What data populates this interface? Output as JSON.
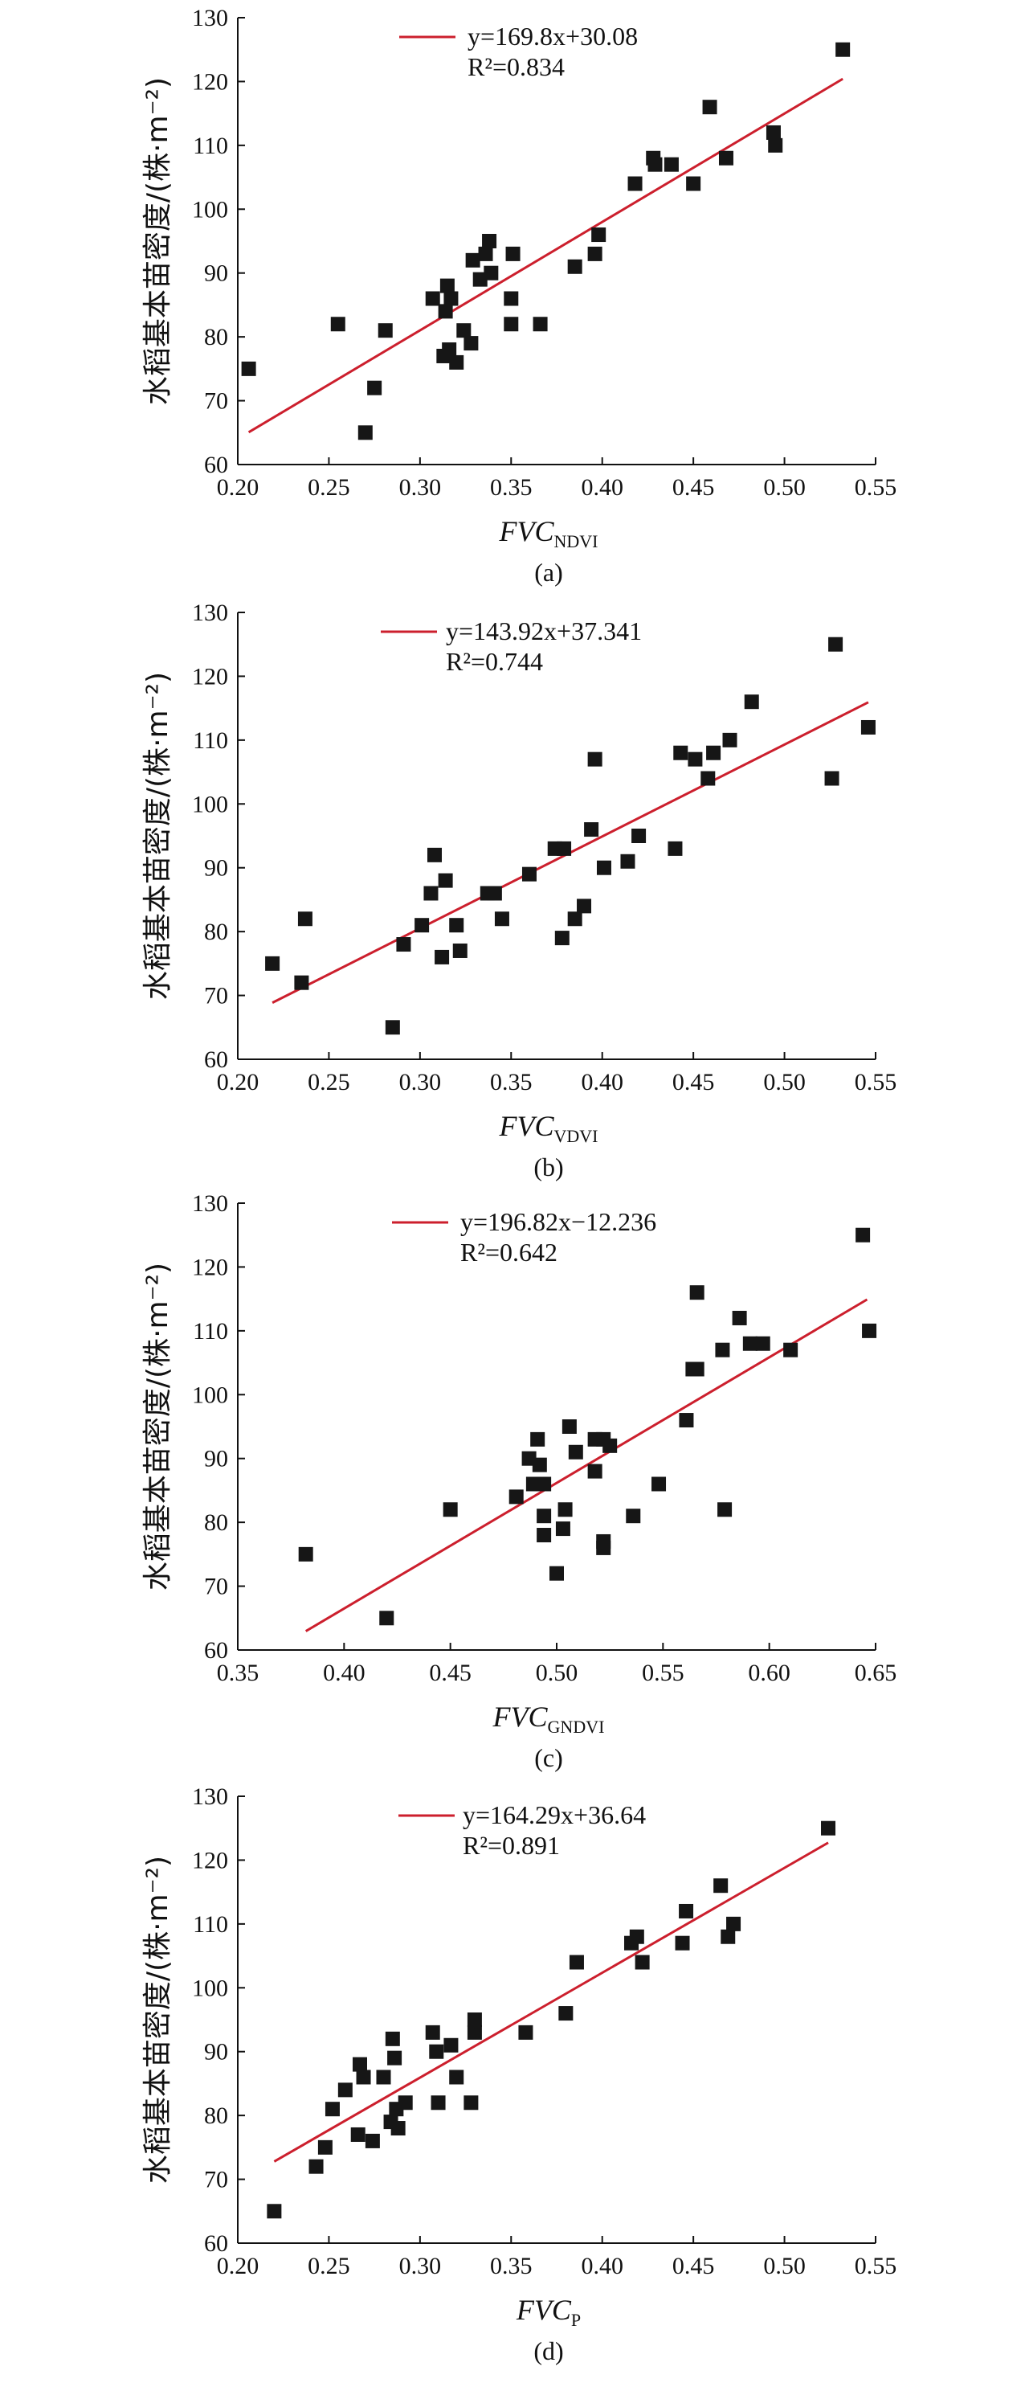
{
  "y_label": "水稻基本苗密度/(株·m⁻²)",
  "chart_data": [
    {
      "type": "scatter",
      "panel_label": "(a)",
      "xlabel_main": "FVC",
      "xlabel_sub": "NDVI",
      "legend_line1": "y=169.8x+30.08",
      "legend_line2": "R²=0.834",
      "xlim": [
        0.2,
        0.55
      ],
      "xticks": [
        "0.20",
        "0.25",
        "0.30",
        "0.35",
        "0.40",
        "0.45",
        "0.50",
        "0.55"
      ],
      "ylim": [
        60,
        130
      ],
      "yticks": [
        "60",
        "70",
        "80",
        "90",
        "100",
        "110",
        "120",
        "130"
      ],
      "fit": {
        "slope": 169.8,
        "intercept": 30.08,
        "x_range": [
          0.206,
          0.532
        ],
        "color": "#cc1f2d"
      },
      "points": [
        {
          "x": 0.206,
          "y": 75
        },
        {
          "x": 0.255,
          "y": 82
        },
        {
          "x": 0.27,
          "y": 65
        },
        {
          "x": 0.275,
          "y": 72
        },
        {
          "x": 0.281,
          "y": 81
        },
        {
          "x": 0.307,
          "y": 86
        },
        {
          "x": 0.313,
          "y": 77
        },
        {
          "x": 0.314,
          "y": 84
        },
        {
          "x": 0.315,
          "y": 88
        },
        {
          "x": 0.316,
          "y": 78
        },
        {
          "x": 0.317,
          "y": 86
        },
        {
          "x": 0.32,
          "y": 76
        },
        {
          "x": 0.324,
          "y": 81
        },
        {
          "x": 0.328,
          "y": 79
        },
        {
          "x": 0.329,
          "y": 92
        },
        {
          "x": 0.333,
          "y": 89
        },
        {
          "x": 0.336,
          "y": 93
        },
        {
          "x": 0.338,
          "y": 95
        },
        {
          "x": 0.339,
          "y": 90
        },
        {
          "x": 0.35,
          "y": 86
        },
        {
          "x": 0.35,
          "y": 82
        },
        {
          "x": 0.351,
          "y": 93
        },
        {
          "x": 0.366,
          "y": 82
        },
        {
          "x": 0.385,
          "y": 91
        },
        {
          "x": 0.396,
          "y": 93
        },
        {
          "x": 0.398,
          "y": 96
        },
        {
          "x": 0.418,
          "y": 104
        },
        {
          "x": 0.428,
          "y": 108
        },
        {
          "x": 0.429,
          "y": 107
        },
        {
          "x": 0.438,
          "y": 107
        },
        {
          "x": 0.45,
          "y": 104
        },
        {
          "x": 0.459,
          "y": 116
        },
        {
          "x": 0.468,
          "y": 108
        },
        {
          "x": 0.494,
          "y": 112
        },
        {
          "x": 0.495,
          "y": 110
        },
        {
          "x": 0.532,
          "y": 125
        }
      ]
    },
    {
      "type": "scatter",
      "panel_label": "(b)",
      "xlabel_main": "FVC",
      "xlabel_sub": "VDVI",
      "legend_line1": "y=143.92x+37.341",
      "legend_line2": "R²=0.744",
      "xlim": [
        0.2,
        0.55
      ],
      "xticks": [
        "0.20",
        "0.25",
        "0.30",
        "0.35",
        "0.40",
        "0.45",
        "0.50",
        "0.55"
      ],
      "ylim": [
        60,
        130
      ],
      "yticks": [
        "60",
        "70",
        "80",
        "90",
        "100",
        "110",
        "120",
        "130"
      ],
      "fit": {
        "slope": 143.92,
        "intercept": 37.341,
        "x_range": [
          0.219,
          0.546
        ],
        "color": "#cc1f2d"
      },
      "points": [
        {
          "x": 0.219,
          "y": 75
        },
        {
          "x": 0.235,
          "y": 72
        },
        {
          "x": 0.237,
          "y": 82
        },
        {
          "x": 0.285,
          "y": 65
        },
        {
          "x": 0.291,
          "y": 78
        },
        {
          "x": 0.301,
          "y": 81
        },
        {
          "x": 0.306,
          "y": 86
        },
        {
          "x": 0.308,
          "y": 92
        },
        {
          "x": 0.312,
          "y": 76
        },
        {
          "x": 0.314,
          "y": 88
        },
        {
          "x": 0.32,
          "y": 81
        },
        {
          "x": 0.322,
          "y": 77
        },
        {
          "x": 0.337,
          "y": 86
        },
        {
          "x": 0.341,
          "y": 86
        },
        {
          "x": 0.345,
          "y": 82
        },
        {
          "x": 0.36,
          "y": 89
        },
        {
          "x": 0.374,
          "y": 93
        },
        {
          "x": 0.378,
          "y": 79
        },
        {
          "x": 0.379,
          "y": 93
        },
        {
          "x": 0.385,
          "y": 82
        },
        {
          "x": 0.39,
          "y": 84
        },
        {
          "x": 0.394,
          "y": 96
        },
        {
          "x": 0.396,
          "y": 107
        },
        {
          "x": 0.401,
          "y": 90
        },
        {
          "x": 0.414,
          "y": 91
        },
        {
          "x": 0.42,
          "y": 95
        },
        {
          "x": 0.44,
          "y": 93
        },
        {
          "x": 0.443,
          "y": 108
        },
        {
          "x": 0.451,
          "y": 107
        },
        {
          "x": 0.458,
          "y": 104
        },
        {
          "x": 0.461,
          "y": 108
        },
        {
          "x": 0.47,
          "y": 110
        },
        {
          "x": 0.482,
          "y": 116
        },
        {
          "x": 0.526,
          "y": 104
        },
        {
          "x": 0.528,
          "y": 125
        },
        {
          "x": 0.546,
          "y": 112
        }
      ]
    },
    {
      "type": "scatter",
      "panel_label": "(c)",
      "xlabel_main": "FVC",
      "xlabel_sub": "GNDVI",
      "legend_line1": "y=196.82x−12.236",
      "legend_line2": "R²=0.642",
      "xlim": [
        0.35,
        0.65
      ],
      "xticks": [
        "0.35",
        "0.40",
        "0.45",
        "0.50",
        "0.55",
        "0.60",
        "0.65"
      ],
      "ylim": [
        60,
        130
      ],
      "yticks": [
        "60",
        "70",
        "80",
        "90",
        "100",
        "110",
        "120",
        "130"
      ],
      "fit": {
        "slope": 196.82,
        "intercept": -12.236,
        "x_range": [
          0.382,
          0.646
        ],
        "color": "#cc1f2d"
      },
      "points": [
        {
          "x": 0.382,
          "y": 75
        },
        {
          "x": 0.42,
          "y": 65
        },
        {
          "x": 0.45,
          "y": 82
        },
        {
          "x": 0.481,
          "y": 84
        },
        {
          "x": 0.487,
          "y": 90
        },
        {
          "x": 0.489,
          "y": 86
        },
        {
          "x": 0.491,
          "y": 93
        },
        {
          "x": 0.492,
          "y": 89
        },
        {
          "x": 0.494,
          "y": 86
        },
        {
          "x": 0.494,
          "y": 81
        },
        {
          "x": 0.494,
          "y": 78
        },
        {
          "x": 0.5,
          "y": 72
        },
        {
          "x": 0.503,
          "y": 79
        },
        {
          "x": 0.504,
          "y": 82
        },
        {
          "x": 0.506,
          "y": 95
        },
        {
          "x": 0.509,
          "y": 91
        },
        {
          "x": 0.518,
          "y": 88
        },
        {
          "x": 0.518,
          "y": 93
        },
        {
          "x": 0.522,
          "y": 93
        },
        {
          "x": 0.522,
          "y": 77
        },
        {
          "x": 0.522,
          "y": 76
        },
        {
          "x": 0.525,
          "y": 92
        },
        {
          "x": 0.536,
          "y": 81
        },
        {
          "x": 0.548,
          "y": 86
        },
        {
          "x": 0.561,
          "y": 96
        },
        {
          "x": 0.564,
          "y": 104
        },
        {
          "x": 0.566,
          "y": 104
        },
        {
          "x": 0.566,
          "y": 116
        },
        {
          "x": 0.578,
          "y": 107
        },
        {
          "x": 0.579,
          "y": 82
        },
        {
          "x": 0.586,
          "y": 112
        },
        {
          "x": 0.591,
          "y": 108
        },
        {
          "x": 0.597,
          "y": 108
        },
        {
          "x": 0.61,
          "y": 107
        },
        {
          "x": 0.644,
          "y": 125
        },
        {
          "x": 0.647,
          "y": 110
        }
      ]
    },
    {
      "type": "scatter",
      "panel_label": "(d)",
      "xlabel_main": "FVC",
      "xlabel_sub": "P",
      "legend_line1": "y=164.29x+36.64",
      "legend_line2": "R²=0.891",
      "xlim": [
        0.2,
        0.55
      ],
      "xticks": [
        "0.20",
        "0.25",
        "0.30",
        "0.35",
        "0.40",
        "0.45",
        "0.50",
        "0.55"
      ],
      "ylim": [
        60,
        130
      ],
      "yticks": [
        "60",
        "70",
        "80",
        "90",
        "100",
        "110",
        "120",
        "130"
      ],
      "fit": {
        "slope": 164.29,
        "intercept": 36.64,
        "x_range": [
          0.22,
          0.524
        ],
        "color": "#cc1f2d"
      },
      "points": [
        {
          "x": 0.22,
          "y": 65
        },
        {
          "x": 0.243,
          "y": 72
        },
        {
          "x": 0.248,
          "y": 75
        },
        {
          "x": 0.252,
          "y": 81
        },
        {
          "x": 0.259,
          "y": 84
        },
        {
          "x": 0.266,
          "y": 77
        },
        {
          "x": 0.267,
          "y": 88
        },
        {
          "x": 0.269,
          "y": 86
        },
        {
          "x": 0.274,
          "y": 76
        },
        {
          "x": 0.28,
          "y": 86
        },
        {
          "x": 0.284,
          "y": 79
        },
        {
          "x": 0.285,
          "y": 92
        },
        {
          "x": 0.286,
          "y": 89
        },
        {
          "x": 0.287,
          "y": 81
        },
        {
          "x": 0.288,
          "y": 78
        },
        {
          "x": 0.292,
          "y": 82
        },
        {
          "x": 0.307,
          "y": 93
        },
        {
          "x": 0.309,
          "y": 90
        },
        {
          "x": 0.31,
          "y": 82
        },
        {
          "x": 0.317,
          "y": 91
        },
        {
          "x": 0.32,
          "y": 86
        },
        {
          "x": 0.328,
          "y": 82
        },
        {
          "x": 0.33,
          "y": 93
        },
        {
          "x": 0.33,
          "y": 95
        },
        {
          "x": 0.358,
          "y": 93
        },
        {
          "x": 0.38,
          "y": 96
        },
        {
          "x": 0.386,
          "y": 104
        },
        {
          "x": 0.416,
          "y": 107
        },
        {
          "x": 0.419,
          "y": 108
        },
        {
          "x": 0.422,
          "y": 104
        },
        {
          "x": 0.444,
          "y": 107
        },
        {
          "x": 0.446,
          "y": 112
        },
        {
          "x": 0.465,
          "y": 116
        },
        {
          "x": 0.469,
          "y": 108
        },
        {
          "x": 0.472,
          "y": 110
        },
        {
          "x": 0.524,
          "y": 125
        }
      ]
    }
  ]
}
